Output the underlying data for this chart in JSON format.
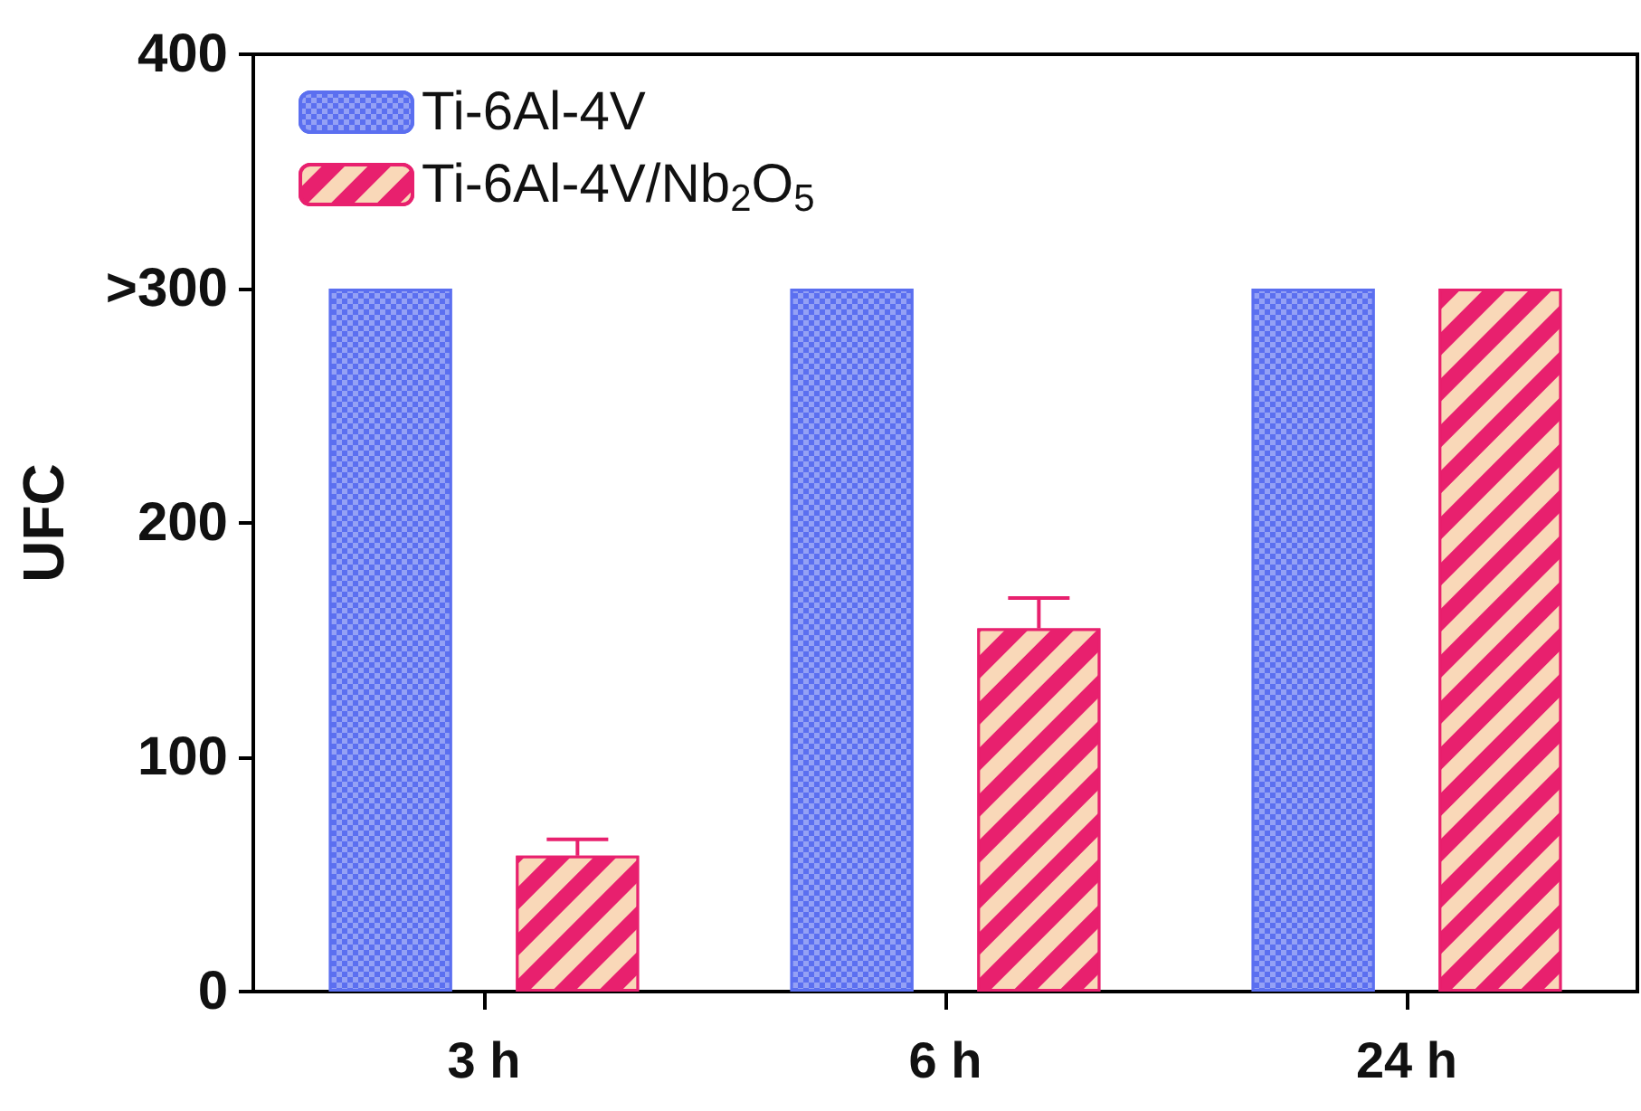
{
  "chart_data": {
    "type": "bar",
    "ylabel": "UFC",
    "categories": [
      "3 h",
      "6 h",
      "24 h"
    ],
    "series": [
      {
        "name": "Ti-6Al-4V",
        "color": "#5b6ff0",
        "values": [
          300,
          300,
          300
        ]
      },
      {
        "name": "Ti-6Al-4V/Nb$_{2}$O$_{5}$",
        "color": "#e8206e",
        "values": [
          58,
          155,
          300
        ],
        "errors": [
          7,
          13,
          null
        ]
      }
    ],
    "ylim": [
      0,
      400
    ],
    "yticks": [
      0,
      100,
      200,
      {
        "value": 300,
        "label": ">300"
      },
      400
    ],
    "grid": false,
    "legend": "top left"
  }
}
